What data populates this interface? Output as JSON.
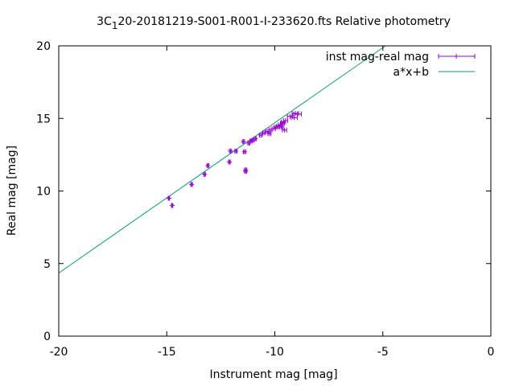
{
  "chart_data": {
    "type": "scatter",
    "title": {
      "prefix": "3C",
      "subscript": "1",
      "suffix": "20-20181219-S001-R001-I-233620.fts Relative photometry"
    },
    "xlabel": "Instrument mag [mag]",
    "ylabel": "Real mag [mag]",
    "xlim": [
      -20,
      0
    ],
    "ylim": [
      0,
      20
    ],
    "xticks": [
      "-20",
      "-15",
      "-10",
      "-5",
      "0"
    ],
    "yticks": [
      "0",
      "5",
      "10",
      "15",
      "20"
    ],
    "grid": false,
    "legend_position": "top-right",
    "series": [
      {
        "name": "inst mag-real mag",
        "kind": "points-with-xerror",
        "color": "#9400d3",
        "points": [
          {
            "x": -14.9,
            "y": 9.5,
            "xerr": 0.03
          },
          {
            "x": -14.75,
            "y": 9.0,
            "xerr": 0.03
          },
          {
            "x": -13.85,
            "y": 10.45,
            "xerr": 0.04
          },
          {
            "x": -13.25,
            "y": 11.15,
            "xerr": 0.04
          },
          {
            "x": -13.1,
            "y": 11.75,
            "xerr": 0.04
          },
          {
            "x": -12.1,
            "y": 12.0,
            "xerr": 0.04
          },
          {
            "x": -12.05,
            "y": 12.75,
            "xerr": 0.05
          },
          {
            "x": -11.8,
            "y": 12.75,
            "xerr": 0.05
          },
          {
            "x": -11.45,
            "y": 13.4,
            "xerr": 0.05
          },
          {
            "x": -11.4,
            "y": 12.7,
            "xerr": 0.05
          },
          {
            "x": -11.35,
            "y": 11.45,
            "xerr": 0.05
          },
          {
            "x": -11.35,
            "y": 11.35,
            "xerr": 0.05
          },
          {
            "x": -11.2,
            "y": 13.3,
            "xerr": 0.05
          },
          {
            "x": -11.1,
            "y": 13.45,
            "xerr": 0.05
          },
          {
            "x": -11.0,
            "y": 13.5,
            "xerr": 0.05
          },
          {
            "x": -10.9,
            "y": 13.6,
            "xerr": 0.05
          },
          {
            "x": -10.65,
            "y": 13.85,
            "xerr": 0.06
          },
          {
            "x": -10.5,
            "y": 14.0,
            "xerr": 0.06
          },
          {
            "x": -10.35,
            "y": 14.1,
            "xerr": 0.07
          },
          {
            "x": -10.25,
            "y": 13.95,
            "xerr": 0.07
          },
          {
            "x": -10.2,
            "y": 14.2,
            "xerr": 0.07
          },
          {
            "x": -10.05,
            "y": 14.3,
            "xerr": 0.08
          },
          {
            "x": -9.95,
            "y": 14.4,
            "xerr": 0.08
          },
          {
            "x": -9.85,
            "y": 14.45,
            "xerr": 0.08
          },
          {
            "x": -9.75,
            "y": 14.55,
            "xerr": 0.09
          },
          {
            "x": -9.7,
            "y": 14.4,
            "xerr": 0.09
          },
          {
            "x": -9.65,
            "y": 14.65,
            "xerr": 0.09
          },
          {
            "x": -9.6,
            "y": 14.75,
            "xerr": 0.1
          },
          {
            "x": -9.55,
            "y": 14.2,
            "xerr": 0.1
          },
          {
            "x": -9.5,
            "y": 14.85,
            "xerr": 0.1
          },
          {
            "x": -9.3,
            "y": 15.15,
            "xerr": 0.12
          },
          {
            "x": -9.1,
            "y": 15.05,
            "xerr": 0.14
          },
          {
            "x": -9.05,
            "y": 15.35,
            "xerr": 0.15
          },
          {
            "x": -8.95,
            "y": 15.3,
            "xerr": 0.18
          }
        ]
      },
      {
        "name": "a*x+b",
        "kind": "line",
        "color": "#009e73",
        "slope": 1.035,
        "intercept": 25.05
      }
    ]
  }
}
